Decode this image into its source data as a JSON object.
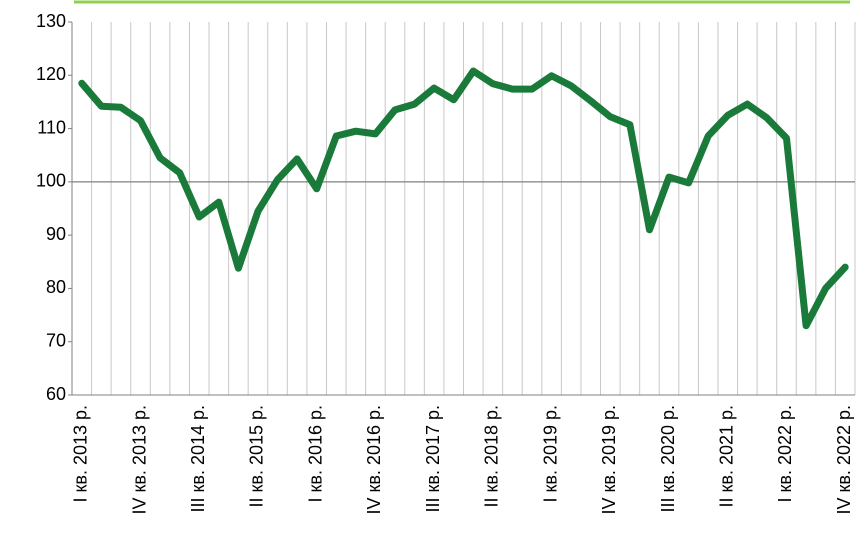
{
  "chart_data": {
    "type": "line",
    "categories": [
      "I кв. 2013 р.",
      null,
      null,
      "IV кв. 2013 р.",
      null,
      null,
      "III кв. 2014 р.",
      null,
      null,
      "II кв. 2015 р.",
      null,
      null,
      "I кв. 2016 р.",
      null,
      null,
      "IV кв. 2016 р.",
      null,
      null,
      "III кв. 2017 р.",
      null,
      null,
      "II кв. 2018 р.",
      null,
      null,
      "I кв. 2019 р.",
      null,
      null,
      "IV кв. 2019 р.",
      null,
      null,
      "III кв. 2020 р.",
      null,
      null,
      "II кв. 2021 р.",
      null,
      null,
      "I кв. 2022 р.",
      null,
      null,
      "IV кв. 2022 р."
    ],
    "values": [
      118.5,
      114.2,
      114,
      111.5,
      104.5,
      101.7,
      93.4,
      96.2,
      83.8,
      94.5,
      100.4,
      104.3,
      98.7,
      108.6,
      109.5,
      109,
      113.5,
      114.6,
      117.6,
      115.4,
      120.8,
      118.4,
      117.4,
      117.4,
      119.9,
      118,
      115.2,
      112.2,
      110.7,
      91,
      100.9,
      99.8,
      108.6,
      112.5,
      114.6,
      112,
      108.2,
      73,
      80,
      84
    ],
    "color": "#1a7a3a",
    "ylim": [
      60,
      130
    ],
    "yticks": [
      60,
      70,
      80,
      90,
      100,
      110,
      120,
      130
    ],
    "reference_line": 100,
    "grid": true
  }
}
